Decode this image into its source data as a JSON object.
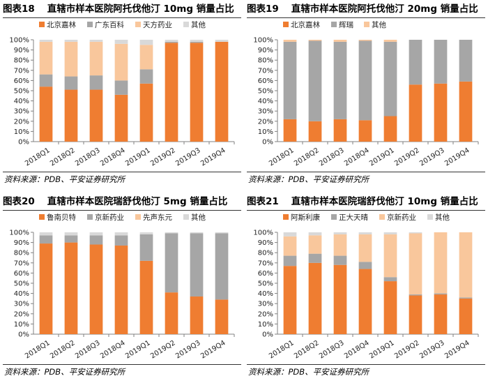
{
  "source_note": "资料来源：PDB、平安证券研究所",
  "colors": {
    "orange": "#EF7D31",
    "gray": "#A6A6A6",
    "peach": "#F9C79C",
    "light": "#D9D9D9",
    "axis": "#808080"
  },
  "chart_data": [
    {
      "type": "bar",
      "stacked": "percent",
      "fig_label": "图表18",
      "title": "直辖市样本医院阿托伐他汀 10mg 销量占比",
      "categories": [
        "2018Q1",
        "2018Q2",
        "2018Q3",
        "2018Q4",
        "2019Q1",
        "2019Q2",
        "2019Q3",
        "2019Q4"
      ],
      "series": [
        {
          "name": "北京嘉林",
          "color": "#EF7D31",
          "values": [
            54,
            51,
            51,
            46,
            57,
            97,
            97,
            98
          ]
        },
        {
          "name": "广东百科",
          "color": "#A6A6A6",
          "values": [
            12,
            13,
            14,
            14,
            14,
            1,
            1,
            0
          ]
        },
        {
          "name": "天方药业",
          "color": "#F9C79C",
          "values": [
            32,
            34,
            33,
            36,
            24,
            0,
            0,
            0
          ]
        },
        {
          "name": "其他",
          "color": "#D9D9D9",
          "values": [
            2,
            2,
            2,
            4,
            5,
            2,
            2,
            2
          ]
        }
      ],
      "ylim": [
        0,
        100
      ],
      "yticks": [
        "0%",
        "10%",
        "20%",
        "30%",
        "40%",
        "50%",
        "60%",
        "70%",
        "80%",
        "90%",
        "100%"
      ],
      "grid": false,
      "legend": "top"
    },
    {
      "type": "bar",
      "stacked": "percent",
      "fig_label": "图表19",
      "title": "直辖市样本医院阿托伐他汀 20mg 销量占比",
      "categories": [
        "2018Q1",
        "2018Q2",
        "2018Q3",
        "2018Q4",
        "2019Q1",
        "2019Q2",
        "2019Q3",
        "2019Q4"
      ],
      "series": [
        {
          "name": "北京嘉林",
          "color": "#EF7D31",
          "values": [
            22,
            20,
            22,
            21,
            25,
            56,
            57,
            59
          ]
        },
        {
          "name": "辉瑞",
          "color": "#A6A6A6",
          "values": [
            76,
            79,
            76,
            78,
            73,
            44,
            43,
            41
          ]
        },
        {
          "name": "其他",
          "color": "#F9C79C",
          "values": [
            2,
            1,
            2,
            1,
            2,
            0,
            0,
            0
          ]
        }
      ],
      "ylim": [
        0,
        100
      ],
      "yticks": [
        "0%",
        "10%",
        "20%",
        "30%",
        "40%",
        "50%",
        "60%",
        "70%",
        "80%",
        "90%",
        "100%"
      ],
      "grid": false,
      "legend": "top"
    },
    {
      "type": "bar",
      "stacked": "percent",
      "fig_label": "图表20",
      "title": "直辖市样本医院瑞舒伐他汀 5mg 销量占比",
      "categories": [
        "2018Q1",
        "2018Q2",
        "2018Q3",
        "2018Q4",
        "2019Q1",
        "2019Q2",
        "2019Q3",
        "2019Q4"
      ],
      "series": [
        {
          "name": "鲁南贝特",
          "color": "#EF7D31",
          "values": [
            89,
            90,
            88,
            87,
            72,
            41,
            37,
            34
          ]
        },
        {
          "name": "京新药业",
          "color": "#A6A6A6",
          "values": [
            8,
            7,
            9,
            10,
            26,
            58,
            62,
            65
          ]
        },
        {
          "name": "先声东元",
          "color": "#F9C79C",
          "values": [
            0,
            0,
            0,
            0,
            0,
            0,
            0,
            0
          ]
        },
        {
          "name": "其他",
          "color": "#D9D9D9",
          "values": [
            3,
            3,
            3,
            3,
            2,
            1,
            1,
            1
          ]
        }
      ],
      "ylim": [
        0,
        100
      ],
      "yticks": [
        "0%",
        "10%",
        "20%",
        "30%",
        "40%",
        "50%",
        "60%",
        "70%",
        "80%",
        "90%",
        "100%"
      ],
      "grid": false,
      "legend": "top"
    },
    {
      "type": "bar",
      "stacked": "percent",
      "fig_label": "图表21",
      "title": "直辖市样本医院瑞舒伐他汀 10mg 销量占比",
      "categories": [
        "2018Q1",
        "2018Q2",
        "2018Q3",
        "2018Q4",
        "2019Q1",
        "2019Q2",
        "2019Q3",
        "2019Q4"
      ],
      "series": [
        {
          "name": "阿斯利康",
          "color": "#EF7D31",
          "values": [
            67,
            70,
            68,
            64,
            52,
            38,
            39,
            35
          ]
        },
        {
          "name": "正大天晴",
          "color": "#A6A6A6",
          "values": [
            10,
            9,
            9,
            7,
            4,
            1,
            1,
            1
          ]
        },
        {
          "name": "京新药业",
          "color": "#F9C79C",
          "values": [
            19,
            18,
            21,
            27,
            42,
            60,
            60,
            64
          ]
        },
        {
          "name": "其他",
          "color": "#D9D9D9",
          "values": [
            4,
            3,
            2,
            2,
            2,
            1,
            0,
            0
          ]
        }
      ],
      "ylim": [
        0,
        100
      ],
      "yticks": [
        "0%",
        "10%",
        "20%",
        "30%",
        "40%",
        "50%",
        "60%",
        "70%",
        "80%",
        "90%",
        "100%"
      ],
      "grid": false,
      "legend": "top"
    }
  ]
}
